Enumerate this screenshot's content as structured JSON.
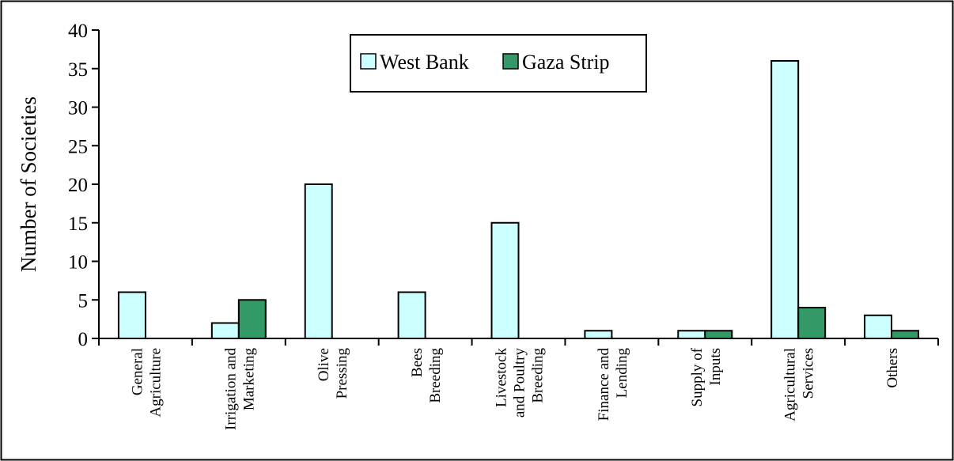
{
  "chart_data": {
    "type": "bar",
    "title": "",
    "xlabel": "",
    "ylabel": "Number of Societies",
    "ylim": [
      0,
      40
    ],
    "yticks": [
      0,
      5,
      10,
      15,
      20,
      25,
      30,
      35,
      40
    ],
    "grid": false,
    "legend_position": "top-center",
    "categories": [
      [
        "General",
        "Agriculture"
      ],
      [
        "Irrigation and",
        "Marketing"
      ],
      [
        "Olive",
        "Pressing"
      ],
      [
        "Bees",
        "Breeding"
      ],
      [
        "Livestock",
        "and Poultry",
        "Breeding"
      ],
      [
        "Finance and",
        "Lending"
      ],
      [
        "Supply of",
        "Inputs"
      ],
      [
        "Agricultural",
        "Services"
      ],
      [
        "Others"
      ]
    ],
    "series": [
      {
        "name": "West Bank",
        "color": "#ccffff",
        "values": [
          6,
          2,
          20,
          6,
          15,
          1,
          1,
          36,
          3
        ]
      },
      {
        "name": "Gaza Strip",
        "color": "#339966",
        "values": [
          0,
          5,
          0,
          0,
          0,
          0,
          1,
          4,
          1
        ]
      }
    ]
  }
}
